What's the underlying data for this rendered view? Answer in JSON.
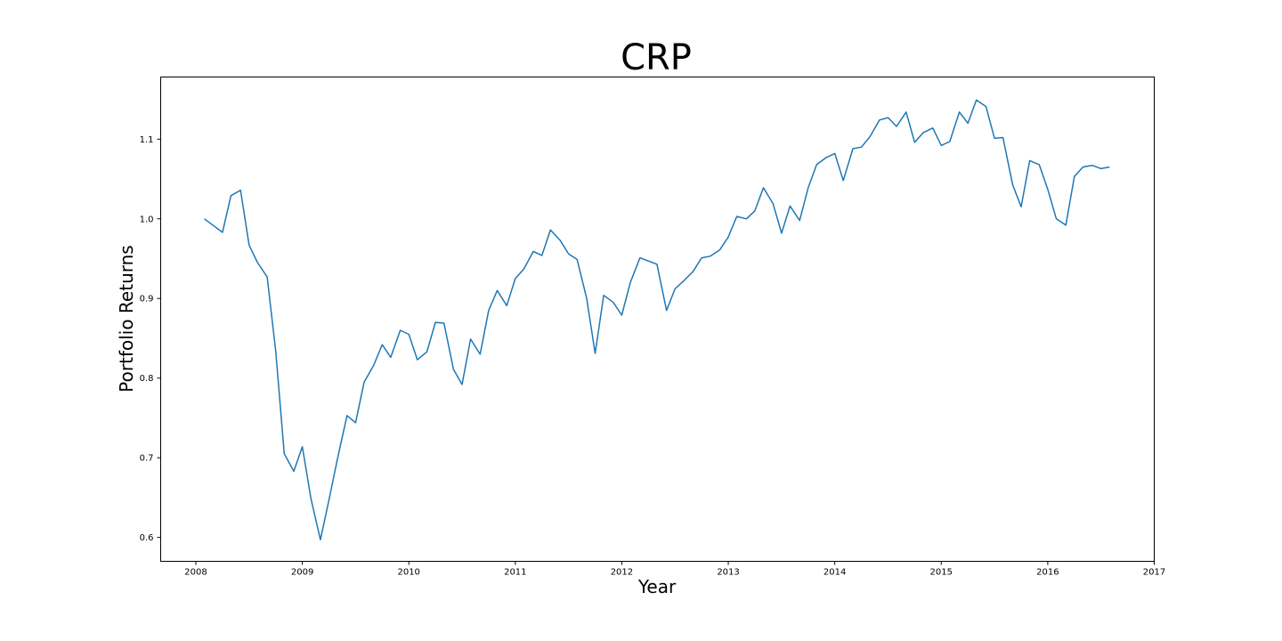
{
  "chart_data": {
    "type": "line",
    "title": "CRP",
    "xlabel": "Year",
    "ylabel": "Portfolio Returns",
    "xlim": [
      2007.67,
      2017.0
    ],
    "ylim": [
      0.57,
      1.178
    ],
    "xticks": [
      2008,
      2009,
      2010,
      2011,
      2012,
      2013,
      2014,
      2015,
      2016,
      2017
    ],
    "xtick_labels": [
      "2008",
      "2009",
      "2010",
      "2011",
      "2012",
      "2013",
      "2014",
      "2015",
      "2016",
      "2017"
    ],
    "yticks": [
      0.6,
      0.7,
      0.8,
      0.9,
      1.0,
      1.1
    ],
    "ytick_labels": [
      "0.6",
      "0.7",
      "0.8",
      "0.9",
      "1.0",
      "1.1"
    ],
    "grid": false,
    "series": [
      {
        "color": "#1f77b4",
        "x": [
          2008.08,
          2008.17,
          2008.25,
          2008.33,
          2008.42,
          2008.5,
          2008.58,
          2008.67,
          2008.75,
          2008.83,
          2008.92,
          2009.0,
          2009.08,
          2009.17,
          2009.25,
          2009.33,
          2009.42,
          2009.5,
          2009.58,
          2009.67,
          2009.75,
          2009.83,
          2009.92,
          2010.0,
          2010.08,
          2010.17,
          2010.25,
          2010.33,
          2010.42,
          2010.5,
          2010.58,
          2010.67,
          2010.75,
          2010.83,
          2010.92,
          2011.0,
          2011.08,
          2011.17,
          2011.25,
          2011.33,
          2011.42,
          2011.5,
          2011.58,
          2011.67,
          2011.75,
          2011.83,
          2011.92,
          2012.0,
          2012.08,
          2012.17,
          2012.25,
          2012.33,
          2012.42,
          2012.5,
          2012.58,
          2012.67,
          2012.75,
          2012.83,
          2012.92,
          2013.0,
          2013.08,
          2013.17,
          2013.25,
          2013.33,
          2013.42,
          2013.5,
          2013.58,
          2013.67,
          2013.75,
          2013.83,
          2013.92,
          2014.0,
          2014.08,
          2014.17,
          2014.25,
          2014.33,
          2014.42,
          2014.5,
          2014.58,
          2014.67,
          2014.75,
          2014.83,
          2014.92,
          2015.0,
          2015.08,
          2015.17,
          2015.25,
          2015.33,
          2015.42,
          2015.5,
          2015.58,
          2015.67,
          2015.75,
          2015.83,
          2015.92,
          2016.0,
          2016.08,
          2016.17,
          2016.25,
          2016.33,
          2016.42,
          2016.5,
          2016.58
        ],
        "y": [
          1.0,
          0.991,
          0.983,
          1.029,
          1.036,
          0.967,
          0.945,
          0.927,
          0.834,
          0.705,
          0.683,
          0.714,
          0.649,
          0.597,
          0.647,
          0.699,
          0.753,
          0.744,
          0.795,
          0.816,
          0.842,
          0.826,
          0.86,
          0.855,
          0.823,
          0.833,
          0.87,
          0.869,
          0.811,
          0.792,
          0.849,
          0.83,
          0.885,
          0.91,
          0.891,
          0.925,
          0.937,
          0.959,
          0.954,
          0.986,
          0.973,
          0.956,
          0.949,
          0.9,
          0.831,
          0.904,
          0.895,
          0.879,
          0.92,
          0.951,
          0.947,
          0.943,
          0.885,
          0.912,
          0.922,
          0.934,
          0.951,
          0.953,
          0.961,
          0.977,
          1.003,
          1.0,
          1.01,
          1.039,
          1.019,
          0.982,
          1.016,
          0.998,
          1.039,
          1.068,
          1.077,
          1.082,
          1.048,
          1.088,
          1.09,
          1.103,
          1.124,
          1.127,
          1.116,
          1.134,
          1.096,
          1.108,
          1.114,
          1.092,
          1.097,
          1.134,
          1.12,
          1.149,
          1.141,
          1.101,
          1.102,
          1.043,
          1.015,
          1.073,
          1.068,
          1.037,
          1.0,
          0.992,
          1.053,
          1.065,
          1.067,
          1.063,
          1.065
        ]
      }
    ]
  }
}
